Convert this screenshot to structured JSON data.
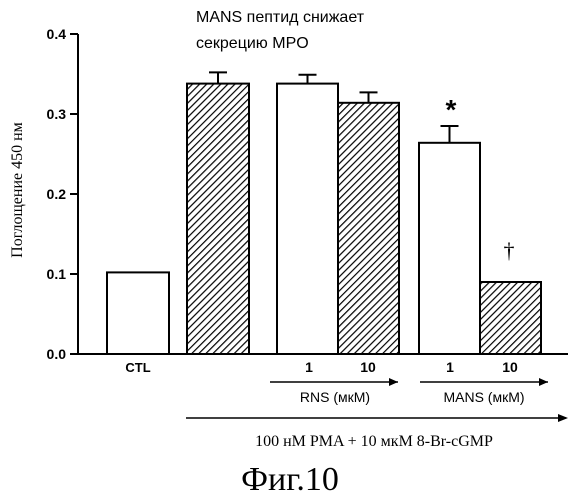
{
  "chart_data": {
    "type": "bar",
    "title_lines": [
      "MANS пептид снижает",
      "секрецию MPO"
    ],
    "ylabel": "Поглощение 450 нм",
    "ylim": [
      0,
      0.4
    ],
    "yticks": [
      "0.0",
      "0.1",
      "0.2",
      "0.3",
      "0.4"
    ],
    "bars": [
      {
        "value": 0.102,
        "error": 0,
        "style": "white"
      },
      {
        "value": 0.338,
        "error": 0.014,
        "style": "hatched"
      },
      {
        "value": 0.338,
        "error": 0.011,
        "style": "white"
      },
      {
        "value": 0.314,
        "error": 0.013,
        "style": "hatched"
      },
      {
        "value": 0.264,
        "error": 0.021,
        "style": "white"
      },
      {
        "value": 0.09,
        "error": 0,
        "style": "hatched"
      }
    ],
    "category_label": "CTL",
    "dose_labels": [
      "1",
      "10",
      "1",
      "10"
    ],
    "groups": [
      {
        "label": "RNS (мкМ)"
      },
      {
        "label": "MANS (мкМ)"
      }
    ],
    "annotations": [
      "*",
      "†"
    ],
    "condition_label": "100 нМ PMA + 10 мкМ 8-Br-cGMP"
  },
  "figure_label": "Фиг.10"
}
